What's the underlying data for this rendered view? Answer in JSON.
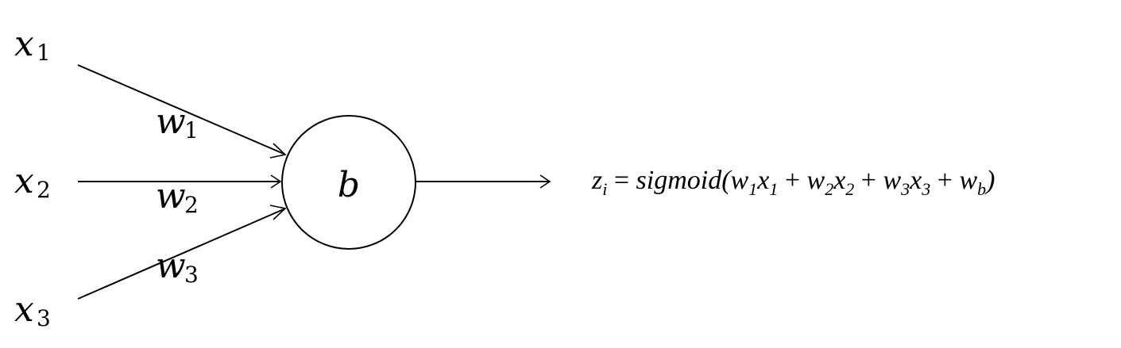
{
  "inputs": [
    {
      "var": "x",
      "sub": "1"
    },
    {
      "var": "x",
      "sub": "2"
    },
    {
      "var": "x",
      "sub": "3"
    }
  ],
  "weights": [
    {
      "var": "w",
      "sub": "1"
    },
    {
      "var": "w",
      "sub": "2"
    },
    {
      "var": "w",
      "sub": "3"
    }
  ],
  "node": {
    "label": "b"
  },
  "equation": {
    "lhs_var": "z",
    "lhs_sub": "i",
    "equals": " = ",
    "func": "sigmoid(",
    "t1_w": "w",
    "t1_ws": "1",
    "t1_x": "x",
    "t1_xs": "1",
    "plus1": " + ",
    "t2_w": "w",
    "t2_ws": "2",
    "t2_x": "x",
    "t2_xs": "2",
    "plus2": " + ",
    "t3_w": "w",
    "t3_ws": "3",
    "t3_x": "x",
    "t3_xs": "3",
    "plus3": " + ",
    "tb_w": "w",
    "tb_ws": "b",
    "close": ")"
  }
}
